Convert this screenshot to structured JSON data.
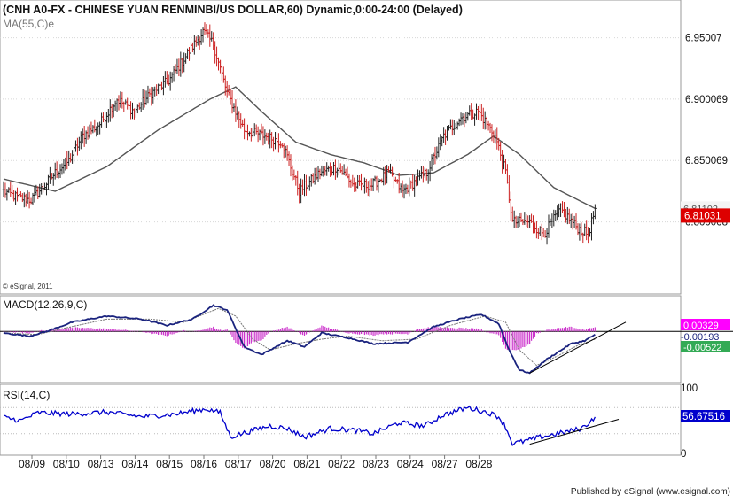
{
  "header": {
    "title": "(CNH A0-FX - CHINESE YUAN RENMINBI/US DOLLAR,60) Dynamic,0:00-24:00 (Delayed)",
    "ma_label": "MA(55,C)e",
    "copyright": "© eSignal, 2011"
  },
  "footer": {
    "published": "Published by eSignal (www.esignal.com)"
  },
  "colors": {
    "up_bar": "#222222",
    "down_bar": "#cc2222",
    "ma_line": "#555555",
    "macd_line": "#1a237e",
    "signal_line": "#777777",
    "histogram": "#cc33cc",
    "rsi_line": "#0000cc",
    "trendline": "#000000",
    "price_box": "#dd0000",
    "pos_box": "#ff00ff",
    "neg_box": "#33aa55",
    "frame": "#999999"
  },
  "chart_data": [
    {
      "type": "ohlc",
      "title": "(CNH A0-FX - CHINESE YUAN RENMINBI/US DOLLAR,60) Dynamic,0:00-24:00 (Delayed)",
      "ylim": [
        6.75,
        6.975
      ],
      "yticks": [
        6.800068,
        6.850069,
        6.900069,
        6.95007
      ],
      "ytick_labels": [
        "6.800068",
        "6.850069",
        "6.900069",
        "6.95007"
      ],
      "x_labels": [
        "08/09",
        "08/10",
        "08/13",
        "08/14",
        "08/15",
        "08/16",
        "08/17",
        "08/20",
        "08/21",
        "08/22",
        "08/23",
        "08/24",
        "08/27",
        "08/28"
      ],
      "bars_per_label": 20,
      "last_price": "6.81031",
      "last_ma": "6.81102",
      "close_anchors": [
        [
          0,
          6.825
        ],
        [
          8,
          6.82
        ],
        [
          16,
          6.818
        ],
        [
          24,
          6.83
        ],
        [
          30,
          6.84
        ],
        [
          38,
          6.85
        ],
        [
          46,
          6.87
        ],
        [
          56,
          6.88
        ],
        [
          66,
          6.9
        ],
        [
          76,
          6.89
        ],
        [
          86,
          6.905
        ],
        [
          96,
          6.915
        ],
        [
          106,
          6.935
        ],
        [
          116,
          6.955
        ],
        [
          122,
          6.945
        ],
        [
          130,
          6.905
        ],
        [
          140,
          6.875
        ],
        [
          152,
          6.87
        ],
        [
          162,
          6.865
        ],
        [
          172,
          6.825
        ],
        [
          184,
          6.84
        ],
        [
          194,
          6.845
        ],
        [
          204,
          6.83
        ],
        [
          214,
          6.83
        ],
        [
          224,
          6.84
        ],
        [
          232,
          6.825
        ],
        [
          246,
          6.84
        ],
        [
          256,
          6.87
        ],
        [
          266,
          6.885
        ],
        [
          276,
          6.89
        ],
        [
          286,
          6.87
        ],
        [
          292,
          6.84
        ],
        [
          296,
          6.8
        ],
        [
          306,
          6.8
        ],
        [
          314,
          6.79
        ],
        [
          324,
          6.81
        ],
        [
          334,
          6.795
        ],
        [
          340,
          6.79
        ],
        [
          344,
          6.81
        ]
      ],
      "series": [
        {
          "name": "MA(55,C)e",
          "values_anchor": [
            [
              0,
              6.835
            ],
            [
              30,
              6.825
            ],
            [
              60,
              6.845
            ],
            [
              90,
              6.875
            ],
            [
              120,
              6.9
            ],
            [
              135,
              6.91
            ],
            [
              150,
              6.89
            ],
            [
              170,
              6.865
            ],
            [
              190,
              6.855
            ],
            [
              210,
              6.848
            ],
            [
              230,
              6.838
            ],
            [
              250,
              6.84
            ],
            [
              270,
              6.855
            ],
            [
              285,
              6.87
            ],
            [
              300,
              6.855
            ],
            [
              320,
              6.828
            ],
            [
              344,
              6.811
            ]
          ]
        }
      ]
    },
    {
      "type": "line",
      "title": "MACD(12,26,9,C)",
      "ylim": [
        -0.032,
        0.022
      ],
      "values_printed": {
        "histogram": "0.00329",
        "macd": "-0.00193",
        "signal": "-0.00522"
      },
      "series": [
        {
          "name": "MACD",
          "anchors": [
            [
              0,
              -0.001
            ],
            [
              15,
              -0.003
            ],
            [
              25,
              0.0
            ],
            [
              40,
              0.006
            ],
            [
              60,
              0.01
            ],
            [
              80,
              0.008
            ],
            [
              95,
              0.004
            ],
            [
              110,
              0.008
            ],
            [
              122,
              0.017
            ],
            [
              130,
              0.014
            ],
            [
              140,
              -0.01
            ],
            [
              150,
              -0.015
            ],
            [
              165,
              -0.006
            ],
            [
              175,
              -0.01
            ],
            [
              185,
              -0.001
            ],
            [
              200,
              -0.004
            ],
            [
              215,
              -0.008
            ],
            [
              235,
              -0.007
            ],
            [
              250,
              0.003
            ],
            [
              265,
              0.008
            ],
            [
              278,
              0.011
            ],
            [
              288,
              0.005
            ],
            [
              294,
              -0.012
            ],
            [
              300,
              -0.025
            ],
            [
              306,
              -0.027
            ],
            [
              316,
              -0.018
            ],
            [
              330,
              -0.008
            ],
            [
              338,
              -0.006
            ],
            [
              344,
              -0.002
            ]
          ]
        },
        {
          "name": "Signal",
          "anchors": [
            [
              0,
              -0.001
            ],
            [
              20,
              -0.002
            ],
            [
              35,
              0.002
            ],
            [
              60,
              0.008
            ],
            [
              85,
              0.008
            ],
            [
              105,
              0.006
            ],
            [
              125,
              0.015
            ],
            [
              135,
              0.01
            ],
            [
              145,
              -0.005
            ],
            [
              155,
              -0.012
            ],
            [
              170,
              -0.008
            ],
            [
              185,
              -0.005
            ],
            [
              200,
              -0.003
            ],
            [
              220,
              -0.006
            ],
            [
              240,
              -0.005
            ],
            [
              260,
              0.004
            ],
            [
              280,
              0.01
            ],
            [
              292,
              0.006
            ],
            [
              300,
              -0.012
            ],
            [
              310,
              -0.022
            ],
            [
              322,
              -0.016
            ],
            [
              334,
              -0.009
            ],
            [
              344,
              -0.005
            ]
          ]
        }
      ]
    },
    {
      "type": "line",
      "title": "RSI(14,C)",
      "ylim": [
        0,
        100
      ],
      "yticks": [
        0,
        100
      ],
      "ytick_labels": [
        "0",
        "100"
      ],
      "last_value": "56.67516",
      "series": [
        {
          "name": "RSI",
          "anchors": [
            [
              0,
              55
            ],
            [
              10,
              50
            ],
            [
              20,
              62
            ],
            [
              40,
              60
            ],
            [
              60,
              63
            ],
            [
              80,
              56
            ],
            [
              100,
              60
            ],
            [
              118,
              68
            ],
            [
              126,
              62
            ],
            [
              132,
              25
            ],
            [
              145,
              35
            ],
            [
              155,
              42
            ],
            [
              165,
              38
            ],
            [
              175,
              25
            ],
            [
              190,
              38
            ],
            [
              205,
              35
            ],
            [
              215,
              30
            ],
            [
              230,
              47
            ],
            [
              245,
              42
            ],
            [
              255,
              58
            ],
            [
              270,
              70
            ],
            [
              282,
              62
            ],
            [
              288,
              56
            ],
            [
              292,
              40
            ],
            [
              296,
              15
            ],
            [
              302,
              18
            ],
            [
              314,
              26
            ],
            [
              326,
              32
            ],
            [
              336,
              38
            ],
            [
              340,
              46
            ],
            [
              344,
              56
            ]
          ]
        }
      ]
    }
  ]
}
